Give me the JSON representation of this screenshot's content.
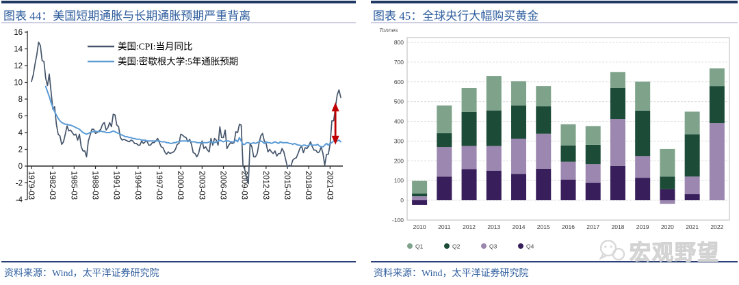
{
  "left_panel": {
    "title": "图表 44：美国短期通胀与长期通胀预期严重背离",
    "source": "资料来源：Wind，太平洋证券研究院"
  },
  "right_panel": {
    "title": "图表 45：全球央行大幅购买黄金",
    "source": "资料来源：Wind，太平洋证券研究院",
    "watermark": "宏观野望"
  },
  "colors": {
    "accent_bar": "#1F3864",
    "title_text": "#2F5E9E",
    "cpi_line": "#44546A",
    "expectation_line": "#5B9BD5",
    "arrow_red": "#C00000",
    "q1": "#7EA38A",
    "q2": "#1C4B37",
    "q3": "#9B87AF",
    "q4": "#381F5C"
  },
  "chart_data": [
    {
      "type": "line",
      "title": "美国短期通胀与长期通胀预期严重背离",
      "ylim": [
        -4,
        16
      ],
      "yticks": [
        16,
        14,
        12,
        10,
        8,
        6,
        4,
        2,
        0,
        -2,
        -4
      ],
      "x_start": 1979.25,
      "x_end": 2022.75,
      "x_tick_labels": [
        "1979-03",
        "1982-03",
        "1985-03",
        "1988-03",
        "1991-03",
        "1994-03",
        "1997-03",
        "2000-03",
        "2003-03",
        "2006-03",
        "2009-03",
        "2012-03",
        "2015-03",
        "2018-03",
        "2021-03"
      ],
      "legend_position": "top-center",
      "grid": false,
      "series": [
        {
          "name": "美国:CPI:当月同比",
          "color": "#44546A",
          "start": 1979.25,
          "step_years": 0.25,
          "values": [
            10.1,
            10.9,
            12.2,
            13.3,
            14.8,
            14.4,
            12.6,
            12.5,
            10.5,
            9.6,
            11.0,
            8.9,
            6.8,
            7.1,
            5.0,
            3.8,
            3.6,
            2.6,
            2.9,
            3.8,
            4.8,
            4.2,
            4.3,
            4.0,
            3.7,
            3.8,
            3.1,
            3.8,
            2.3,
            1.8,
            1.8,
            1.1,
            3.0,
            3.7,
            4.4,
            4.4,
            3.9,
            4.0,
            4.2,
            4.4,
            5.0,
            5.2,
            4.3,
            4.6,
            5.2,
            4.7,
            6.2,
            6.1,
            4.9,
            4.7,
            3.4,
            3.1,
            3.2,
            3.1,
            3.0,
            2.9,
            3.1,
            3.0,
            2.7,
            2.7,
            2.5,
            2.5,
            3.0,
            2.7,
            2.9,
            3.0,
            2.5,
            2.5,
            2.8,
            2.8,
            3.0,
            3.3,
            2.8,
            2.3,
            2.2,
            1.7,
            1.4,
            1.7,
            1.5,
            1.6,
            1.7,
            2.0,
            2.6,
            2.7,
            3.8,
            3.7,
            3.5,
            3.4,
            2.9,
            3.2,
            2.6,
            1.6,
            1.5,
            1.1,
            1.5,
            2.4,
            3.0,
            2.1,
            2.3,
            1.9,
            1.7,
            3.3,
            2.5,
            3.3,
            3.1,
            2.5,
            4.7,
            3.4,
            3.4,
            4.3,
            2.1,
            2.5,
            2.8,
            2.7,
            2.8,
            4.1,
            4.0,
            5.0,
            4.9,
            0.1,
            -0.4,
            -1.4,
            -2.1,
            2.7,
            2.3,
            1.1,
            1.1,
            1.5,
            2.7,
            3.6,
            3.9,
            3.0,
            2.7,
            1.7,
            2.0,
            1.7,
            1.5,
            1.8,
            1.2,
            1.5,
            1.5,
            2.1,
            1.7,
            0.8,
            -0.1,
            0.1,
            0.0,
            0.7,
            0.9,
            1.0,
            1.5,
            2.1,
            2.4,
            1.6,
            2.2,
            2.1,
            2.4,
            2.9,
            2.3,
            1.9,
            1.9,
            1.6,
            1.7,
            2.3,
            1.5,
            0.1,
            1.4,
            1.4,
            2.6,
            5.4,
            5.4,
            7.0,
            8.5,
            9.1,
            8.2
          ]
        },
        {
          "name": "美国:密歇根大学:5年通胀预期",
          "color": "#5B9BD5",
          "start": 1981.25,
          "step_years": 0.25,
          "values": [
            9.5,
            8.9,
            8.3,
            7.6,
            7.0,
            6.5,
            6.1,
            5.7,
            5.4,
            5.2,
            5.1,
            5.0,
            5.0,
            4.9,
            4.9,
            4.8,
            4.7,
            4.6,
            4.5,
            4.4,
            4.2,
            4.0,
            3.9,
            3.8,
            3.9,
            4.0,
            4.1,
            4.1,
            4.2,
            4.1,
            4.1,
            4.2,
            4.1,
            4.1,
            4.0,
            4.0,
            4.0,
            4.1,
            4.2,
            4.1,
            4.0,
            3.9,
            3.8,
            3.7,
            3.6,
            3.5,
            3.5,
            3.4,
            3.4,
            3.3,
            3.3,
            3.2,
            3.2,
            3.2,
            3.1,
            3.1,
            3.1,
            3.0,
            3.0,
            3.0,
            3.0,
            3.0,
            3.0,
            3.0,
            3.0,
            2.9,
            2.9,
            2.9,
            2.8,
            2.8,
            2.7,
            2.7,
            2.8,
            2.8,
            2.9,
            2.9,
            3.0,
            3.0,
            3.0,
            3.0,
            3.0,
            3.0,
            2.9,
            2.9,
            2.9,
            2.8,
            2.8,
            2.8,
            2.8,
            2.8,
            2.8,
            2.8,
            2.9,
            2.9,
            2.8,
            2.8,
            2.9,
            2.9,
            3.1,
            3.0,
            2.9,
            3.0,
            3.0,
            3.0,
            2.9,
            2.9,
            2.9,
            3.1,
            2.9,
            3.4,
            3.0,
            2.6,
            2.6,
            2.8,
            2.8,
            2.7,
            2.7,
            2.8,
            2.7,
            2.8,
            2.9,
            3.0,
            2.9,
            2.7,
            2.9,
            2.8,
            2.8,
            2.7,
            2.8,
            2.9,
            2.8,
            2.7,
            2.9,
            2.8,
            2.8,
            2.8,
            2.8,
            2.7,
            2.7,
            2.6,
            2.7,
            2.6,
            2.5,
            2.5,
            2.4,
            2.5,
            2.5,
            2.4,
            2.5,
            2.6,
            2.5,
            2.5,
            2.5,
            2.6,
            2.4,
            2.3,
            2.3,
            2.5,
            2.7,
            2.5,
            2.7,
            2.8,
            3.0,
            3.1,
            3.0,
            3.1,
            2.9
          ]
        }
      ],
      "annotation_arrow": {
        "x": 2022.0,
        "y_top": 7.6,
        "y_bottom": 2.55,
        "color": "#C00000"
      }
    },
    {
      "type": "stacked_bar",
      "title": "全球央行大幅购买黄金",
      "unit_label": "Tonnes",
      "ylim": [
        -100,
        800
      ],
      "yticks": [
        800,
        700,
        600,
        500,
        400,
        300,
        200,
        100,
        0,
        -100
      ],
      "grid": "dashed-horizontal",
      "legend_position": "bottom-left",
      "categories": [
        "2010",
        "2011",
        "2012",
        "2013",
        "2014",
        "2015",
        "2016",
        "2017",
        "2018",
        "2019",
        "2020",
        "2021",
        "2022"
      ],
      "stack_order_bottom_to_top": [
        "Q4",
        "Q3",
        "Q2",
        "Q1"
      ],
      "series": [
        {
          "name": "Q1",
          "color": "#7EA38A",
          "values": [
            64,
            140,
            121,
            175,
            123,
            101,
            107,
            95,
            82,
            147,
            140,
            115,
            90
          ]
        },
        {
          "name": "Q2",
          "color": "#1C4B37",
          "values": [
            14,
            70,
            172,
            180,
            168,
            140,
            83,
            98,
            156,
            230,
            64,
            214,
            187
          ]
        },
        {
          "name": "Q3",
          "color": "#9B87AF",
          "values": [
            20,
            150,
            117,
            125,
            179,
            177,
            90,
            95,
            238,
            110,
            -18,
            89,
            391
          ]
        },
        {
          "name": "Q4",
          "color": "#381F5C",
          "values": [
            -24,
            120,
            158,
            150,
            133,
            160,
            105,
            88,
            174,
            114,
            56,
            31,
            0
          ]
        }
      ]
    }
  ]
}
